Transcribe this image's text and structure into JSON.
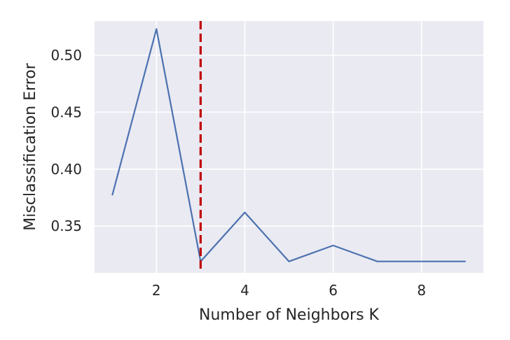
{
  "chart_data": {
    "type": "line",
    "title": "",
    "xlabel": "Number of Neighbors K",
    "ylabel": "Misclassification Error",
    "xlim": [
      0.6,
      9.4
    ],
    "ylim": [
      0.309,
      0.53
    ],
    "xticks": [
      2,
      4,
      6,
      8
    ],
    "xtick_labels": [
      "2",
      "4",
      "6",
      "8"
    ],
    "yticks": [
      0.35,
      0.4,
      0.45,
      0.5
    ],
    "ytick_labels": [
      "0.35",
      "0.40",
      "0.45",
      "0.50"
    ],
    "grid": true,
    "series": [
      {
        "color": "#4c72b0",
        "x": [
          1,
          2,
          3,
          4,
          5,
          6,
          7,
          8,
          9
        ],
        "y": [
          0.377,
          0.523,
          0.319,
          0.362,
          0.319,
          0.333,
          0.319,
          0.319,
          0.319
        ]
      }
    ],
    "vline": {
      "x": 3,
      "color": "#c00000",
      "style": "dashed"
    },
    "background": "#eaeaf2",
    "grid_color": "#ffffff"
  }
}
